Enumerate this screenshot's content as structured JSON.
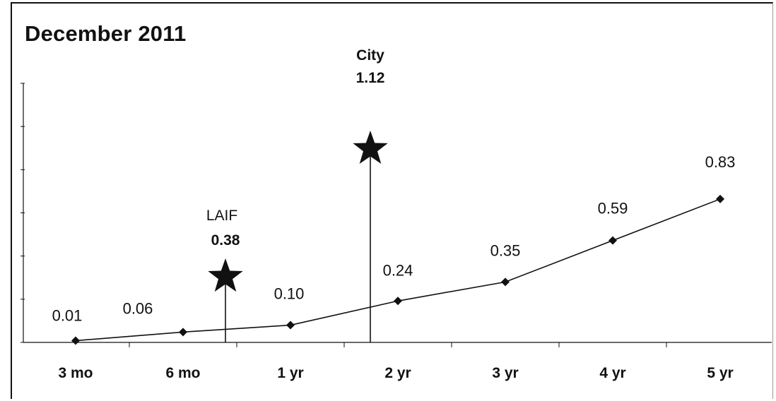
{
  "chart_data": {
    "type": "line",
    "title": "December 2011",
    "categories": [
      "3 mo",
      "6 mo",
      "1 yr",
      "2 yr",
      "3 yr",
      "4 yr",
      "5 yr"
    ],
    "series": [
      {
        "values": [
          0.01,
          0.06,
          0.1,
          0.24,
          0.35,
          0.59,
          0.83
        ]
      }
    ],
    "data_labels": [
      "0.01",
      "0.06",
      "0.10",
      "0.24",
      "0.35",
      "0.59",
      "0.83"
    ],
    "ylim": [
      0,
      1.5
    ],
    "grid": false,
    "annotations": [
      {
        "name": "LAIF",
        "value": 0.38,
        "label": "0.38",
        "x_between": [
          "6 mo",
          "1 yr"
        ]
      },
      {
        "name": "City",
        "value": 1.12,
        "label": "1.12",
        "x_between": [
          "1 yr",
          "2 yr"
        ]
      }
    ],
    "colors": {
      "line": "#111111",
      "marker": "#111111",
      "star": "#111111"
    }
  }
}
